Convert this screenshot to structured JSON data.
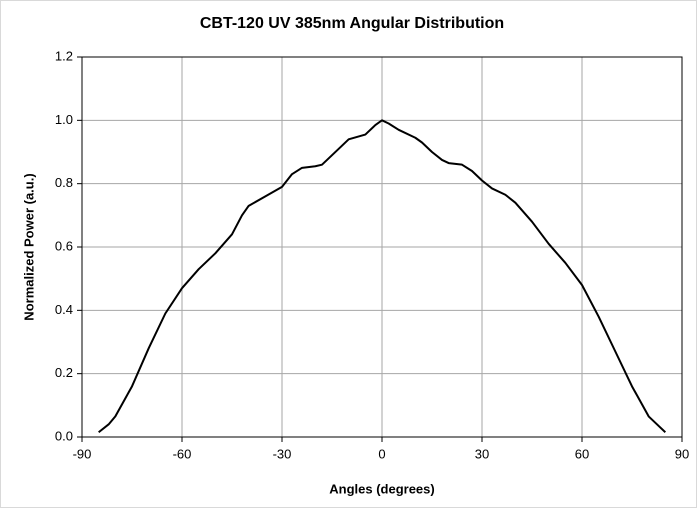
{
  "chart_data": {
    "type": "line",
    "title": "CBT-120 UV 385nm Angular Distribution",
    "x_label": "Angles (degrees)",
    "y_label": "Normalized Power (a.u.)",
    "x": [
      -85,
      -82,
      -80,
      -75,
      -70,
      -65,
      -60,
      -55,
      -50,
      -45,
      -42,
      -40,
      -35,
      -30,
      -27,
      -24,
      -20,
      -18,
      -15,
      -12,
      -10,
      -5,
      -2,
      0,
      2,
      5,
      10,
      12,
      15,
      18,
      20,
      24,
      27,
      30,
      33,
      37,
      40,
      45,
      50,
      55,
      60,
      65,
      70,
      75,
      80,
      83,
      85
    ],
    "series": [
      {
        "name": "Normalized Power",
        "color": "#000000",
        "values": [
          0.015,
          0.04,
          0.065,
          0.16,
          0.28,
          0.39,
          0.47,
          0.53,
          0.58,
          0.64,
          0.7,
          0.73,
          0.76,
          0.79,
          0.83,
          0.85,
          0.855,
          0.86,
          0.89,
          0.92,
          0.94,
          0.955,
          0.985,
          1.0,
          0.99,
          0.97,
          0.945,
          0.93,
          0.9,
          0.875,
          0.865,
          0.86,
          0.84,
          0.81,
          0.785,
          0.765,
          0.74,
          0.68,
          0.61,
          0.55,
          0.48,
          0.38,
          0.27,
          0.16,
          0.065,
          0.035,
          0.015
        ]
      }
    ],
    "xlim": [
      -90,
      90
    ],
    "xticks": [
      -90,
      -60,
      -30,
      0,
      30,
      60,
      90
    ],
    "ylim": [
      0,
      1.2
    ],
    "yticks": [
      {
        "value": 0,
        "label": "0.0"
      },
      0.2,
      0.4,
      0.6,
      0.8,
      {
        "value": 1,
        "label": "1.0"
      },
      1.2
    ],
    "grid": true
  }
}
